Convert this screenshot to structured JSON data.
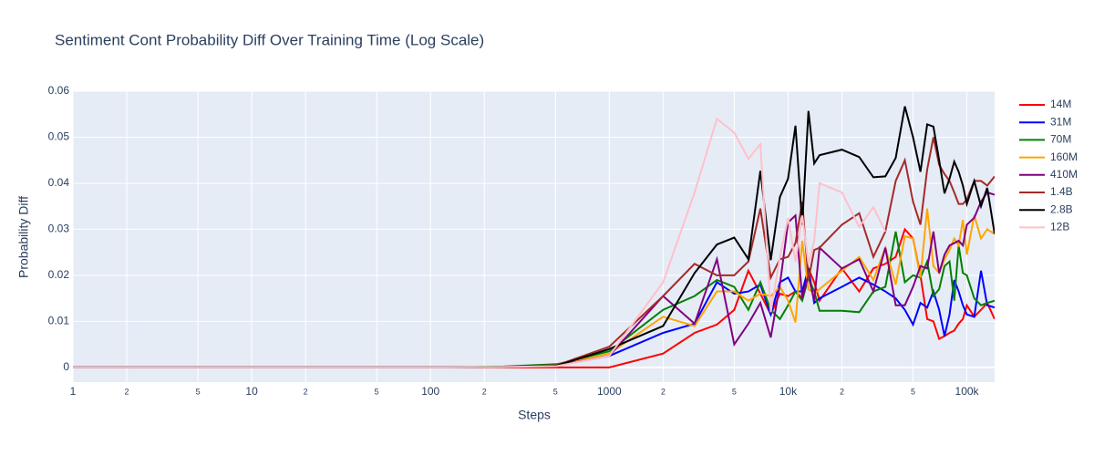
{
  "chart_data": {
    "type": "line",
    "title": "Sentiment Cont Probability Diff Over Training Time (Log Scale)",
    "x_label": "Steps",
    "y_label": "Probability Diff",
    "xscale": "log",
    "grid": true,
    "legend": "right",
    "x": [
      1,
      2,
      4,
      8,
      16,
      32,
      64,
      128,
      256,
      512,
      1000,
      2000,
      3000,
      4000,
      5000,
      6000,
      7000,
      8000,
      9000,
      10000,
      11000,
      12000,
      13000,
      14000,
      15000,
      20000,
      25000,
      30000,
      35000,
      40000,
      45000,
      50000,
      55000,
      60000,
      65000,
      70000,
      75000,
      80000,
      85000,
      90000,
      95000,
      100000,
      110000,
      120000,
      130000,
      143000
    ],
    "xlim": [
      1,
      143000
    ],
    "xticks": [
      1,
      2,
      5,
      10,
      {
        "value": 20,
        "label": "2"
      },
      {
        "value": 50,
        "label": "5"
      },
      100,
      {
        "value": 200,
        "label": "2"
      },
      {
        "value": 500,
        "label": "5"
      },
      1000,
      {
        "value": 2000,
        "label": "2"
      },
      {
        "value": 5000,
        "label": "5"
      },
      {
        "value": 10000,
        "label": "10k"
      },
      {
        "value": 20000,
        "label": "2"
      },
      {
        "value": 50000,
        "label": "5"
      },
      {
        "value": 100000,
        "label": "100k"
      }
    ],
    "ylim": [
      -0.0032,
      0.06
    ],
    "yticks": [
      0,
      0.01,
      0.02,
      0.03,
      0.04,
      0.05,
      0.06
    ],
    "series": [
      {
        "name": "14M",
        "color": "red",
        "values": [
          0,
          0,
          0,
          0,
          0,
          0,
          0,
          0,
          0,
          0,
          0,
          0.003,
          0.0075,
          0.0093,
          0.0125,
          0.021,
          0.016,
          0.0115,
          0.016,
          0.0155,
          0.0165,
          0.015,
          0.0215,
          0.0185,
          0.0145,
          0.0215,
          0.0165,
          0.0215,
          0.0225,
          0.024,
          0.03,
          0.028,
          0.02,
          0.0105,
          0.01,
          0.0062,
          0.0068,
          0.0075,
          0.008,
          0.0095,
          0.0105,
          0.0135,
          0.011,
          0.0125,
          0.014,
          0.0105
        ]
      },
      {
        "name": "31M",
        "color": "blue",
        "values": [
          0,
          0,
          0,
          0,
          0,
          0,
          0,
          0,
          0.0001,
          0.0004,
          0.0025,
          0.0075,
          0.0095,
          0.0185,
          0.016,
          0.0165,
          0.018,
          0.0115,
          0.0185,
          0.0195,
          0.0165,
          0.0165,
          0.0215,
          0.014,
          0.015,
          0.0175,
          0.0195,
          0.018,
          0.0165,
          0.015,
          0.0125,
          0.0093,
          0.014,
          0.013,
          0.0165,
          0.0125,
          0.0068,
          0.0115,
          0.019,
          0.0165,
          0.0135,
          0.0115,
          0.011,
          0.021,
          0.0135,
          0.013
        ]
      },
      {
        "name": "70M",
        "color": "green",
        "values": [
          0,
          0,
          0,
          0,
          0,
          0,
          0,
          0,
          0.0002,
          0.0007,
          0.0035,
          0.0125,
          0.0155,
          0.019,
          0.0175,
          0.0125,
          0.0185,
          0.0125,
          0.0105,
          0.0135,
          0.0165,
          0.0145,
          0.0195,
          0.0165,
          0.0123,
          0.0123,
          0.012,
          0.0165,
          0.0175,
          0.0295,
          0.0185,
          0.02,
          0.0195,
          0.023,
          0.0155,
          0.017,
          0.022,
          0.023,
          0.0145,
          0.0265,
          0.0205,
          0.02,
          0.015,
          0.0135,
          0.014,
          0.0145
        ]
      },
      {
        "name": "160M",
        "color": "orange",
        "values": [
          0,
          0,
          0,
          0,
          0,
          0,
          0,
          0,
          0.0001,
          0.0004,
          0.003,
          0.011,
          0.009,
          0.0165,
          0.0165,
          0.0145,
          0.016,
          0.0155,
          0.0175,
          0.0145,
          0.0098,
          0.0275,
          0.017,
          0.016,
          0.017,
          0.021,
          0.024,
          0.019,
          0.026,
          0.018,
          0.0285,
          0.028,
          0.0195,
          0.0345,
          0.022,
          0.0205,
          0.0235,
          0.0255,
          0.028,
          0.0265,
          0.032,
          0.0245,
          0.033,
          0.028,
          0.03,
          0.029
        ]
      },
      {
        "name": "410M",
        "color": "purple",
        "values": [
          0,
          0,
          0,
          0,
          0,
          0,
          0,
          0,
          0.0001,
          0.0004,
          0.0025,
          0.0155,
          0.0095,
          0.0235,
          0.005,
          0.0095,
          0.014,
          0.0065,
          0.018,
          0.0315,
          0.033,
          0.015,
          0.02,
          0.0145,
          0.026,
          0.0215,
          0.0235,
          0.0165,
          0.026,
          0.0135,
          0.0135,
          0.0175,
          0.022,
          0.0215,
          0.0295,
          0.0205,
          0.0245,
          0.0265,
          0.027,
          0.0275,
          0.0265,
          0.031,
          0.0325,
          0.036,
          0.038,
          0.0375
        ]
      },
      {
        "name": "1.4B",
        "color": "brown",
        "values": [
          0,
          0,
          0,
          0,
          0,
          0,
          0,
          0,
          0.0001,
          0.0005,
          0.0045,
          0.0155,
          0.0225,
          0.02,
          0.02,
          0.023,
          0.0345,
          0.0195,
          0.0235,
          0.024,
          0.027,
          0.036,
          0.019,
          0.0255,
          0.026,
          0.031,
          0.0335,
          0.024,
          0.0295,
          0.0405,
          0.045,
          0.036,
          0.031,
          0.043,
          0.05,
          0.044,
          0.042,
          0.0405,
          0.038,
          0.0355,
          0.0355,
          0.0365,
          0.0405,
          0.0405,
          0.0395,
          0.0415
        ]
      },
      {
        "name": "2.8B",
        "color": "black",
        "values": [
          0,
          0,
          0,
          0,
          0,
          0,
          0,
          0,
          0.0001,
          0.0004,
          0.004,
          0.009,
          0.0205,
          0.0267,
          0.0282,
          0.0235,
          0.0427,
          0.0233,
          0.037,
          0.041,
          0.0525,
          0.031,
          0.0557,
          0.0443,
          0.0461,
          0.0473,
          0.0457,
          0.0413,
          0.0415,
          0.0455,
          0.0567,
          0.05,
          0.0425,
          0.0528,
          0.0523,
          0.045,
          0.0378,
          0.041,
          0.0447,
          0.0425,
          0.0395,
          0.0355,
          0.0405,
          0.035,
          0.039,
          0.029
        ]
      },
      {
        "name": "12B",
        "color": "pink",
        "values": [
          0,
          0,
          0,
          0,
          0,
          0,
          0,
          0,
          0.0001,
          0.0003,
          0.0025,
          0.0185,
          0.038,
          0.054,
          0.051,
          0.0453,
          0.0485,
          0.012,
          0.024,
          0.0325,
          0.023,
          0.033,
          0.0225,
          0.0275,
          0.04,
          0.038,
          0.0305,
          0.0348,
          0.0295,
          null,
          null,
          null,
          null,
          null,
          null,
          null,
          null,
          null,
          null,
          null,
          null,
          null,
          null,
          null,
          null,
          null
        ]
      }
    ]
  }
}
